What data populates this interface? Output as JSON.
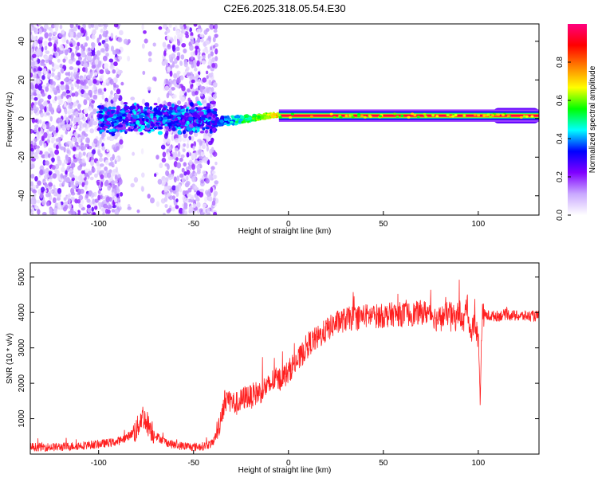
{
  "figure_title": "C2E6.2025.318.05.54.E30",
  "chart_data": [
    {
      "type": "heatmap",
      "title": "C2E6.2025.318.05.54.E30",
      "xlabel": "Height of straight line (km)",
      "ylabel": "Frequency (Hz)",
      "xlim": [
        -136,
        132
      ],
      "ylim": [
        -50,
        49
      ],
      "xticks": [
        -100,
        -50,
        0,
        50,
        100
      ],
      "yticks": [
        -40,
        -20,
        0,
        20,
        40
      ],
      "colorbar": {
        "label": "Normalized spectral amplitude",
        "range": [
          0,
          1
        ],
        "ticks": [
          0.0,
          0.2,
          0.4,
          0.6,
          0.8
        ],
        "tick_labels": [
          "0.0",
          "0.2",
          "0.4",
          "0.6",
          "0.8"
        ],
        "colormap": [
          "#ffffff",
          "#c9a8ff",
          "#8000ff",
          "#0000ff",
          "#00ffff",
          "#00ff00",
          "#ffff00",
          "#ff8000",
          "#ff0000",
          "#ff0080"
        ]
      },
      "features": [
        {
          "name": "noise_scatter",
          "x_range": [
            -136,
            -38
          ],
          "freq_range": [
            -50,
            49
          ],
          "amplitude": 0.08,
          "gaps": [
            [
              -88,
              -66
            ]
          ]
        },
        {
          "name": "broadband_core",
          "x_range": [
            -100,
            -38
          ],
          "center_freq": 0,
          "freq_halfwidth": 6,
          "amplitude": 0.35
        },
        {
          "name": "transition_line",
          "x_range": [
            -38,
            -5
          ],
          "center_freq_start": -2,
          "center_freq_end": 2,
          "amplitude": 0.55
        },
        {
          "name": "stable_line",
          "x_range": [
            -5,
            132
          ],
          "center_freq": 1.5,
          "amplitude": 0.95
        },
        {
          "name": "line_broadening",
          "x_range": [
            108,
            132
          ],
          "center_freq": 1.5,
          "freq_halfwidth": 4,
          "amplitude": 0.5
        }
      ]
    },
    {
      "type": "line",
      "xlabel": "Height of straight line (km)",
      "ylabel": "SNR (10 * v/v)",
      "xlim": [
        -136,
        132
      ],
      "ylim": [
        0,
        5400
      ],
      "xticks": [
        -100,
        -50,
        0,
        50,
        100
      ],
      "yticks": [
        1000,
        2000,
        3000,
        4000,
        5000
      ],
      "color": "#ff2020",
      "series": [
        {
          "name": "SNR",
          "x": [
            -136,
            -120,
            -100,
            -90,
            -85,
            -80,
            -77,
            -74,
            -70,
            -65,
            -60,
            -50,
            -45,
            -40,
            -37,
            -35,
            -33,
            -30,
            -28,
            -25,
            -22,
            -20,
            -18,
            -15,
            -12,
            -10,
            -8,
            -5,
            -3,
            0,
            2,
            4,
            6,
            8,
            10,
            13,
            16,
            20,
            25,
            30,
            35,
            40,
            45,
            50,
            55,
            60,
            65,
            70,
            75,
            78,
            82,
            85,
            88,
            90,
            92,
            94,
            96,
            98,
            100,
            101,
            102,
            103,
            105,
            110,
            115,
            120,
            125,
            132
          ],
          "values": [
            200,
            200,
            280,
            350,
            480,
            680,
            1100,
            850,
            520,
            350,
            250,
            200,
            220,
            300,
            700,
            1200,
            1600,
            1500,
            1400,
            1500,
            1650,
            1600,
            1700,
            1750,
            1900,
            1900,
            2100,
            2100,
            2200,
            2300,
            2500,
            2600,
            2700,
            2900,
            3100,
            3200,
            3300,
            3500,
            3700,
            3800,
            3850,
            3900,
            3900,
            3900,
            3950,
            3950,
            3950,
            4000,
            4000,
            3800,
            3900,
            4000,
            3800,
            4100,
            3600,
            4300,
            3400,
            3700,
            3300,
            1600,
            3900,
            3950,
            3900,
            3900,
            3950,
            3900,
            3900,
            3900
          ],
          "noise_amplitude": 350
        }
      ]
    }
  ]
}
